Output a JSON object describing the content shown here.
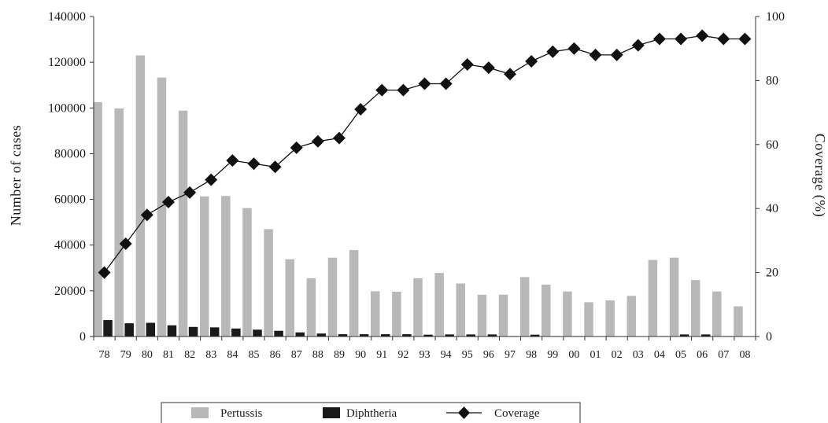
{
  "chart_data": {
    "type": "bar",
    "categories": [
      "78",
      "79",
      "80",
      "81",
      "82",
      "83",
      "84",
      "85",
      "86",
      "87",
      "88",
      "89",
      "90",
      "91",
      "92",
      "93",
      "94",
      "95",
      "96",
      "97",
      "98",
      "99",
      "00",
      "01",
      "02",
      "03",
      "04",
      "05",
      "06",
      "07",
      "08"
    ],
    "series": [
      {
        "name": "Pertussis",
        "type": "bar",
        "axis": "left",
        "color": "#b8b8b8",
        "values": [
          102500,
          99800,
          123000,
          113300,
          98800,
          61300,
          61500,
          56200,
          47000,
          33800,
          25500,
          34500,
          37800,
          19800,
          19600,
          25500,
          27800,
          23200,
          18300,
          18300,
          26000,
          22700,
          19700,
          15000,
          15800,
          17800,
          33500,
          34500,
          24700,
          19700,
          13200
        ]
      },
      {
        "name": "Diphtheria",
        "type": "bar",
        "axis": "left",
        "color": "#1a1a1a",
        "values": [
          7200,
          5800,
          6000,
          4900,
          4200,
          4000,
          3500,
          3000,
          2500,
          1800,
          1300,
          1000,
          1000,
          1000,
          1000,
          800,
          900,
          900,
          900,
          200,
          800,
          200,
          200,
          100,
          100,
          100,
          200,
          900,
          900,
          200,
          100
        ]
      },
      {
        "name": "Coverage",
        "type": "line",
        "axis": "right",
        "color": "#111111",
        "values": [
          20,
          29,
          38,
          42,
          45,
          49,
          55,
          54,
          53,
          59,
          61,
          62,
          71,
          77,
          77,
          79,
          79,
          85,
          84,
          82,
          86,
          89,
          90,
          88,
          88,
          91,
          93,
          93,
          94,
          93,
          93
        ]
      }
    ],
    "ylabel": "Number of cases",
    "ylabel_right": "Coverage (%)",
    "ylim": [
      0,
      140000
    ],
    "yticks": [
      "0",
      "20000",
      "40000",
      "60000",
      "80000",
      "100000",
      "120000",
      "140000"
    ],
    "ylim_right": [
      0,
      100
    ],
    "yticks_right": [
      "0",
      "20",
      "40",
      "60",
      "80",
      "100"
    ],
    "grid": false,
    "legend_position": "bottom"
  }
}
